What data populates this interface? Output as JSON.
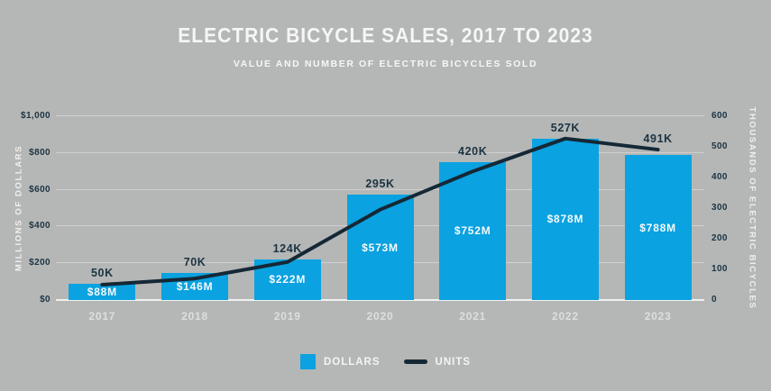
{
  "title": "ELECTRIC BICYCLE SALES, 2017 TO 2023",
  "subtitle": "VALUE AND NUMBER OF ELECTRIC BICYCLES SOLD",
  "colors": {
    "background": "#b5b7b6",
    "bar": "#0aa2e0",
    "line": "#152836",
    "dark_text": "#1b3341"
  },
  "legend": {
    "dollars_label": "DOLLARS",
    "units_label": "UNITS"
  },
  "chart_data": {
    "type": "bar",
    "subtype": "bar+line combo, dual axis",
    "title": "ELECTRIC BICYCLE SALES, 2017 TO 2023",
    "subtitle": "VALUE AND NUMBER OF ELECTRIC BICYCLES SOLD",
    "categories": [
      "2017",
      "2018",
      "2019",
      "2020",
      "2021",
      "2022",
      "2023"
    ],
    "series": [
      {
        "name": "DOLLARS",
        "type": "bar",
        "axis": "left",
        "values": [
          88,
          146,
          222,
          573,
          752,
          878,
          788
        ],
        "labels": [
          "$88M",
          "$146M",
          "$222M",
          "$573M",
          "$752M",
          "$878M",
          "$788M"
        ]
      },
      {
        "name": "UNITS",
        "type": "line",
        "axis": "right",
        "values": [
          50,
          70,
          124,
          295,
          420,
          527,
          491
        ],
        "labels": [
          "50K",
          "70K",
          "124K",
          "295K",
          "420K",
          "527K",
          "491K"
        ]
      }
    ],
    "axes": {
      "left": {
        "title": "MILLIONS OF DOLLARS",
        "min": 0,
        "max": 1000,
        "ticks": [
          "$0",
          "$200",
          "$400",
          "$600",
          "$800",
          "$1,000"
        ]
      },
      "right": {
        "title": "THOUSANDS OF ELECTRIC BICYCLES",
        "min": 0,
        "max": 600,
        "ticks": [
          "0",
          "100",
          "200",
          "300",
          "400",
          "500",
          "600"
        ]
      }
    },
    "grid": true,
    "legend_position": "bottom"
  }
}
